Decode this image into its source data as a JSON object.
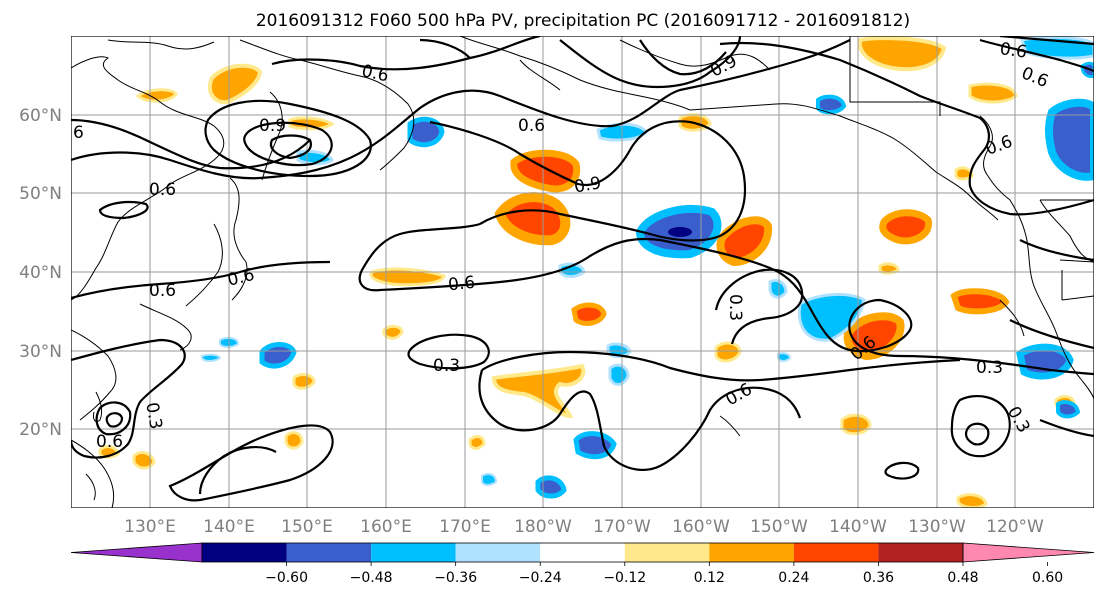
{
  "title": "2016091312 F060 500 hPa PV, precipitation PC (2016091712 - 2016091812)",
  "map": {
    "lon_labels": [
      "130°E",
      "140°E",
      "150°E",
      "160°E",
      "170°E",
      "180°W",
      "170°W",
      "160°W",
      "150°W",
      "140°W",
      "130°W",
      "120°W"
    ],
    "lat_labels": [
      "60°N",
      "50°N",
      "40°N",
      "30°N",
      "20°N"
    ],
    "contour_labels": [
      "0.6",
      "0.9",
      "0.6",
      "0.9",
      "0.6",
      "6",
      "0.9",
      "0.6",
      "0.6",
      "0.6",
      "0.6",
      "0.6",
      "0.6",
      "0.3",
      "0.3",
      "0.3",
      "0.6",
      "0.3",
      "0.6",
      "0.3",
      "0.6"
    ]
  },
  "colorbar": {
    "ticks": [
      "−0.60",
      "−0.48",
      "−0.36",
      "−0.24",
      "−0.12",
      "0.12",
      "0.24",
      "0.36",
      "0.48",
      "0.60"
    ],
    "colors": [
      "#9932cc",
      "#000080",
      "#3a5fcd",
      "#00bfff",
      "#b0e2ff",
      "#ffffff",
      "#ffe98a",
      "#ffa500",
      "#ff4500",
      "#b22222",
      "#ff88b0"
    ]
  },
  "colors": {
    "pos_low": "#ffe98a",
    "pos_mid": "#ffa500",
    "pos_high": "#ff4500",
    "neg_low": "#b0e2ff",
    "neg_mid": "#00bfff",
    "neg_high": "#3a5fcd",
    "neg_max": "#000080"
  }
}
